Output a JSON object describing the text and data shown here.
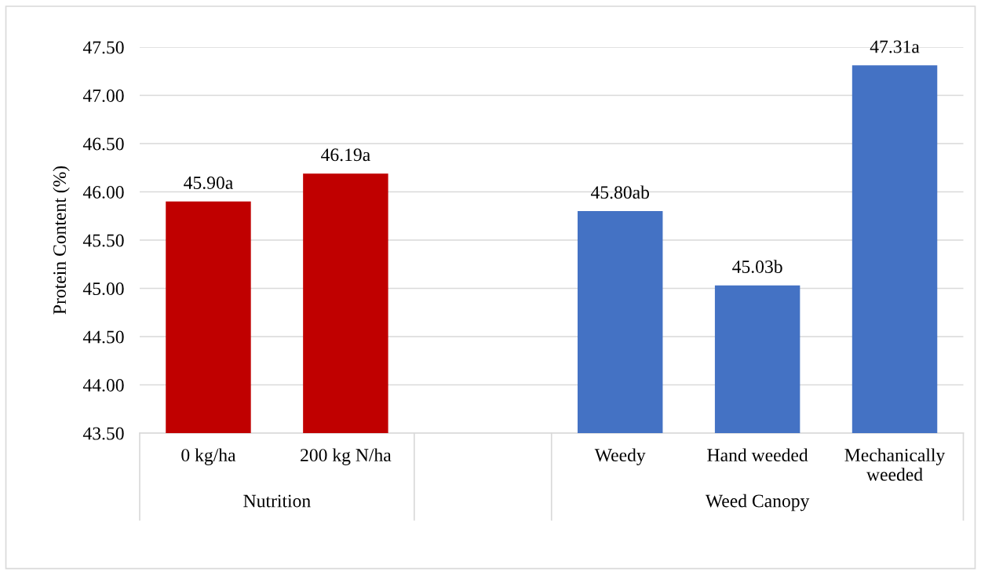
{
  "chart_data": {
    "type": "bar",
    "ylabel": "Protein Content (%)",
    "categories": [
      "0 kg/ha",
      "200 kg N/ha",
      null,
      "Weedy",
      "Hand weeded",
      "Mechanically\nweeded"
    ],
    "values": [
      45.9,
      46.19,
      null,
      45.8,
      45.03,
      47.31
    ],
    "colors": [
      "#c00000",
      "#c00000",
      null,
      "#4472c4",
      "#4472c4",
      "#4472c4"
    ],
    "value_labels": [
      "45.90a",
      "46.19a",
      null,
      "45.80ab",
      "45.03b",
      "47.31a"
    ],
    "annotations": [
      "Nutrition",
      "Weed Canopy"
    ],
    "ylim": [
      43.5,
      47.5
    ],
    "yticks": [
      {
        "value": 43.5,
        "label": "43.50"
      },
      {
        "value": 44.0,
        "label": "44.00"
      },
      {
        "value": 44.5,
        "label": "44.50"
      },
      {
        "value": 45.0,
        "label": "45.00"
      },
      {
        "value": 45.5,
        "label": "45.50"
      },
      {
        "value": 46.0,
        "label": "46.00"
      },
      {
        "value": 46.5,
        "label": "46.50"
      },
      {
        "value": 47.0,
        "label": "47.00"
      },
      {
        "value": 47.5,
        "label": "47.50"
      }
    ],
    "grid": "y"
  }
}
